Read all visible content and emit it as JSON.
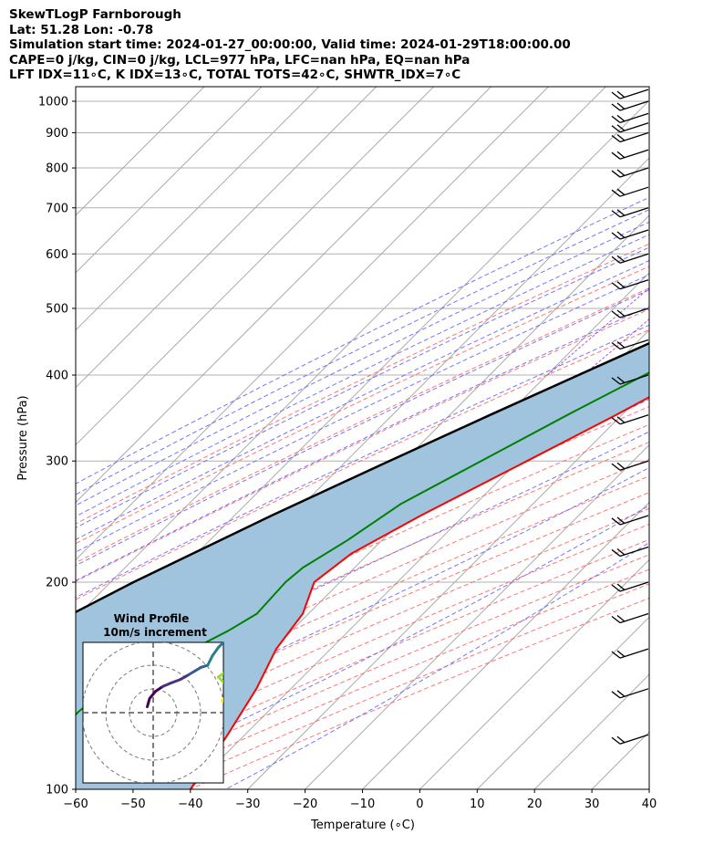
{
  "header": {
    "title": "SkewTLogP Farnborough",
    "location": "Lat: 51.28   Lon: -0.78",
    "times": "Simulation start time: 2024-01-27_00:00:00, Valid time: 2024-01-29T18:00:00.00",
    "params": "CAPE=0 j/kg, CIN=0 j/kg, LCL=977 hPa, LFC=nan hPa, EQ=nan hPa",
    "indices": "LFT IDX=11∘C, K IDX=13∘C, TOTAL TOTS=42∘C, SHWTR_IDX=7∘C"
  },
  "chart_data": [
    {
      "type": "line",
      "subtype": "skew-t log-p",
      "xlabel": "Temperature (∘C)",
      "ylabel": "Pressure (hPa)",
      "xlim": [
        -60,
        40
      ],
      "ylim": [
        1050,
        100
      ],
      "y_scale": "log",
      "x_ticks": [
        "−60",
        "−50",
        "−40",
        "−30",
        "−20",
        "−10",
        "0",
        "10",
        "20",
        "30",
        "40"
      ],
      "y_ticks": [
        "100",
        "200",
        "300",
        "400",
        "500",
        "600",
        "700",
        "800",
        "900",
        "1000"
      ],
      "colors": {
        "temperature": "#ff0000",
        "dewpoint": "#008000",
        "parcel": "#000000",
        "shade": "#a0c4de",
        "dry_adiabat": "#ff6666",
        "moist_adiabat": "#6666ff",
        "isotherm": "#aaaaaa",
        "mixing_ratio": "#9b30d9"
      },
      "series": [
        {
          "role": "temperature",
          "points": [
            [
              1000,
              10.5
            ],
            [
              985,
              12.8
            ],
            [
              950,
              14.0
            ],
            [
              900,
              14.0
            ],
            [
              850,
              12.5
            ],
            [
              800,
              9.0
            ],
            [
              750,
              4.5
            ],
            [
              700,
              0.0
            ],
            [
              650,
              -4.0
            ],
            [
              600,
              -7.5
            ],
            [
              550,
              -11.0
            ],
            [
              500,
              -15.5
            ],
            [
              450,
              -20.0
            ],
            [
              400,
              -25.0
            ],
            [
              350,
              -31.0
            ],
            [
              300,
              -38.5
            ],
            [
              250,
              -47.5
            ],
            [
              220,
              -53.0
            ],
            [
              200,
              -54.5
            ],
            [
              180,
              -51.0
            ],
            [
              160,
              -49.5
            ],
            [
              140,
              -46.0
            ],
            [
              120,
              -43.0
            ],
            [
              100,
              -40.0
            ]
          ]
        },
        {
          "role": "dewpoint",
          "points": [
            [
              1000,
              8.0
            ],
            [
              980,
              8.2
            ],
            [
              950,
              10.0
            ],
            [
              930,
              9.0
            ],
            [
              900,
              7.0
            ],
            [
              870,
              1.0
            ],
            [
              830,
              -5.0
            ],
            [
              800,
              -8.0
            ],
            [
              770,
              -10.0
            ],
            [
              750,
              -10.0
            ],
            [
              700,
              -10.5
            ],
            [
              650,
              -11.0
            ],
            [
              600,
              -13.5
            ],
            [
              550,
              -17.5
            ],
            [
              500,
              -22.0
            ],
            [
              450,
              -27.0
            ],
            [
              400,
              -33.0
            ],
            [
              350,
              -39.5
            ],
            [
              300,
              -46.5
            ],
            [
              260,
              -53.0
            ],
            [
              230,
              -56.0
            ],
            [
              210,
              -59.0
            ],
            [
              200,
              -59.5
            ],
            [
              180,
              -59.0
            ],
            [
              170,
              -61.0
            ],
            [
              160,
              -64.0
            ],
            [
              150,
              -68.0
            ],
            [
              140,
              -72.0
            ],
            [
              130,
              -73.0
            ],
            [
              120,
              -73.0
            ],
            [
              110,
              -71.0
            ],
            [
              100,
              -69.0
            ]
          ]
        },
        {
          "role": "parcel",
          "points": [
            [
              1000,
              9.0
            ],
            [
              977,
              8.0
            ],
            [
              950,
              7.0
            ],
            [
              900,
              4.5
            ],
            [
              850,
              1.5
            ],
            [
              800,
              -1.5
            ],
            [
              750,
              -5.0
            ],
            [
              700,
              -9.0
            ],
            [
              650,
              -13.5
            ],
            [
              600,
              -18.5
            ],
            [
              550,
              -24.0
            ],
            [
              500,
              -30.0
            ],
            [
              450,
              -37.0
            ],
            [
              400,
              -44.5
            ],
            [
              350,
              -53.0
            ],
            [
              300,
              -62.5
            ],
            [
              250,
              -73.5
            ],
            [
              200,
              -86.0
            ],
            [
              150,
              -100.0
            ],
            [
              100,
              -118.0
            ]
          ]
        }
      ],
      "wind_barbs": {
        "pressures": [
          1040,
          1000,
          960,
          930,
          900,
          850,
          800,
          750,
          700,
          650,
          600,
          550,
          500,
          450,
          400,
          350,
          300,
          250,
          225,
          200,
          180,
          160,
          140,
          120
        ]
      }
    },
    {
      "type": "line",
      "subtype": "hodograph",
      "title": "Wind Profile",
      "subtitle": "10m/s increment",
      "points": [
        [
          -0.5,
          0.5
        ],
        [
          -0.3,
          1.2
        ],
        [
          0.2,
          1.8
        ],
        [
          0.8,
          2.2
        ],
        [
          1.5,
          2.5
        ],
        [
          2.3,
          2.8
        ],
        [
          3.0,
          3.2
        ],
        [
          3.5,
          3.5
        ],
        [
          4.0,
          3.8
        ],
        [
          4.6,
          4.0
        ],
        [
          5.0,
          4.8
        ],
        [
          5.5,
          5.5
        ],
        [
          6.0,
          6.0
        ],
        [
          6.8,
          6.5
        ],
        [
          7.2,
          6.0
        ],
        [
          7.5,
          5.5
        ],
        [
          7.6,
          5.0
        ],
        [
          7.0,
          4.2
        ],
        [
          6.3,
          3.6
        ],
        [
          5.5,
          3.0
        ],
        [
          6.0,
          2.5
        ],
        [
          6.5,
          2.0
        ],
        [
          6.2,
          1.5
        ],
        [
          6.0,
          1.2
        ],
        [
          5.8,
          1.0
        ]
      ]
    }
  ]
}
